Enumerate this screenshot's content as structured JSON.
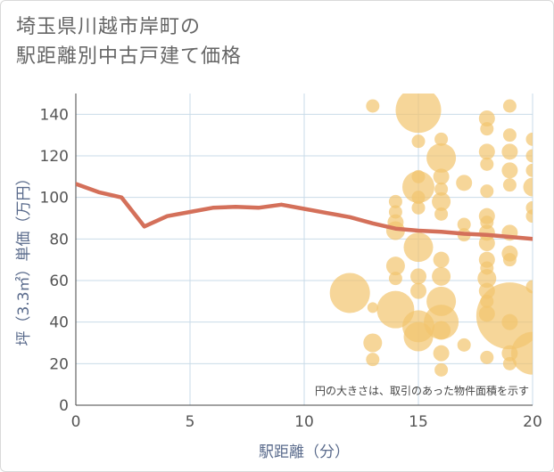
{
  "title_line1": "埼玉県川越市岸町の",
  "title_line2": "駅距離別中古戸建て価格",
  "note": "円の大きさは、取引のあった物件面積を示す",
  "colors": {
    "bubble": "#f2c46d",
    "line": "#d4705a",
    "grid": "#c9dbe8",
    "axis_text": "#5a6b8c"
  },
  "chart_data": {
    "type": "scatter",
    "xlabel": "駅距離（分）",
    "ylabel": "坪（3.3㎡）単価（万円）",
    "xlim": [
      0,
      20
    ],
    "ylim": [
      0,
      150
    ],
    "xticks": [
      0,
      5,
      10,
      15,
      20
    ],
    "yticks": [
      0,
      20,
      40,
      60,
      80,
      100,
      120,
      140
    ],
    "grid": true,
    "bubbles": [
      {
        "x": 13,
        "y": 144,
        "s": 1.0
      },
      {
        "x": 13,
        "y": 47,
        "s": 0.8
      },
      {
        "x": 13,
        "y": 30,
        "s": 1.4
      },
      {
        "x": 13,
        "y": 22,
        "s": 1.0
      },
      {
        "x": 12,
        "y": 54,
        "s": 3.0
      },
      {
        "x": 14,
        "y": 98,
        "s": 1.0
      },
      {
        "x": 14,
        "y": 93,
        "s": 1.0
      },
      {
        "x": 14,
        "y": 88,
        "s": 1.2
      },
      {
        "x": 14,
        "y": 84,
        "s": 1.4
      },
      {
        "x": 14,
        "y": 67,
        "s": 1.4
      },
      {
        "x": 14,
        "y": 61,
        "s": 1.0
      },
      {
        "x": 14,
        "y": 46,
        "s": 2.8
      },
      {
        "x": 15,
        "y": 142,
        "s": 3.4
      },
      {
        "x": 15,
        "y": 127,
        "s": 1.0
      },
      {
        "x": 15,
        "y": 110,
        "s": 1.0
      },
      {
        "x": 15,
        "y": 105,
        "s": 2.4
      },
      {
        "x": 15,
        "y": 100,
        "s": 1.0
      },
      {
        "x": 15,
        "y": 95,
        "s": 1.0
      },
      {
        "x": 15,
        "y": 76,
        "s": 2.2
      },
      {
        "x": 15,
        "y": 62,
        "s": 1.2
      },
      {
        "x": 15,
        "y": 55,
        "s": 1.2
      },
      {
        "x": 15,
        "y": 38,
        "s": 2.4
      },
      {
        "x": 15,
        "y": 33,
        "s": 2.2
      },
      {
        "x": 16,
        "y": 128,
        "s": 1.0
      },
      {
        "x": 16,
        "y": 119,
        "s": 2.2
      },
      {
        "x": 16,
        "y": 110,
        "s": 1.2
      },
      {
        "x": 16,
        "y": 104,
        "s": 1.0
      },
      {
        "x": 16,
        "y": 98,
        "s": 1.4
      },
      {
        "x": 16,
        "y": 92,
        "s": 1.0
      },
      {
        "x": 16,
        "y": 70,
        "s": 1.2
      },
      {
        "x": 16,
        "y": 62,
        "s": 1.4
      },
      {
        "x": 16,
        "y": 50,
        "s": 2.2
      },
      {
        "x": 16,
        "y": 40,
        "s": 2.6
      },
      {
        "x": 16,
        "y": 36,
        "s": 1.4
      },
      {
        "x": 16,
        "y": 25,
        "s": 1.2
      },
      {
        "x": 16,
        "y": 17,
        "s": 1.0
      },
      {
        "x": 17,
        "y": 107,
        "s": 1.2
      },
      {
        "x": 17,
        "y": 87,
        "s": 1.0
      },
      {
        "x": 17,
        "y": 82,
        "s": 1.0
      },
      {
        "x": 17,
        "y": 29,
        "s": 1.0
      },
      {
        "x": 18,
        "y": 138,
        "s": 1.2
      },
      {
        "x": 18,
        "y": 133,
        "s": 1.0
      },
      {
        "x": 18,
        "y": 122,
        "s": 1.2
      },
      {
        "x": 18,
        "y": 116,
        "s": 1.0
      },
      {
        "x": 18,
        "y": 103,
        "s": 1.0
      },
      {
        "x": 18,
        "y": 91,
        "s": 1.2
      },
      {
        "x": 18,
        "y": 88,
        "s": 1.0
      },
      {
        "x": 18,
        "y": 83,
        "s": 1.2
      },
      {
        "x": 18,
        "y": 78,
        "s": 1.2
      },
      {
        "x": 18,
        "y": 70,
        "s": 1.2
      },
      {
        "x": 18,
        "y": 66,
        "s": 1.0
      },
      {
        "x": 18,
        "y": 61,
        "s": 1.4
      },
      {
        "x": 18,
        "y": 55,
        "s": 1.2
      },
      {
        "x": 18,
        "y": 50,
        "s": 1.0
      },
      {
        "x": 18,
        "y": 44,
        "s": 1.2
      },
      {
        "x": 18,
        "y": 23,
        "s": 1.0
      },
      {
        "x": 19,
        "y": 144,
        "s": 1.0
      },
      {
        "x": 19,
        "y": 130,
        "s": 1.0
      },
      {
        "x": 19,
        "y": 122,
        "s": 1.2
      },
      {
        "x": 19,
        "y": 113,
        "s": 1.2
      },
      {
        "x": 19,
        "y": 106,
        "s": 1.0
      },
      {
        "x": 19,
        "y": 83,
        "s": 1.2
      },
      {
        "x": 19,
        "y": 73,
        "s": 1.2
      },
      {
        "x": 19,
        "y": 70,
        "s": 1.0
      },
      {
        "x": 19,
        "y": 43,
        "s": 5.0
      },
      {
        "x": 19,
        "y": 40,
        "s": 1.2
      },
      {
        "x": 19,
        "y": 25,
        "s": 1.2
      },
      {
        "x": 19,
        "y": 20,
        "s": 1.0
      },
      {
        "x": 20,
        "y": 128,
        "s": 1.0
      },
      {
        "x": 20,
        "y": 120,
        "s": 1.0
      },
      {
        "x": 20,
        "y": 113,
        "s": 1.0
      },
      {
        "x": 20,
        "y": 105,
        "s": 1.4
      },
      {
        "x": 20,
        "y": 95,
        "s": 1.0
      },
      {
        "x": 20,
        "y": 91,
        "s": 1.0
      },
      {
        "x": 20,
        "y": 57,
        "s": 1.0
      },
      {
        "x": 20,
        "y": 25,
        "s": 3.2
      }
    ],
    "trend": {
      "x": [
        0,
        1,
        2,
        3,
        4,
        5,
        6,
        7,
        8,
        9,
        10,
        11,
        12,
        13,
        14,
        15,
        16,
        17,
        18,
        19,
        20
      ],
      "y": [
        106.5,
        102.5,
        100.0,
        86.0,
        91.0,
        93.0,
        95.0,
        95.5,
        95.0,
        96.5,
        94.5,
        92.5,
        90.5,
        87.5,
        85.0,
        84.0,
        83.5,
        82.5,
        82.0,
        81.0,
        80.0
      ]
    }
  }
}
